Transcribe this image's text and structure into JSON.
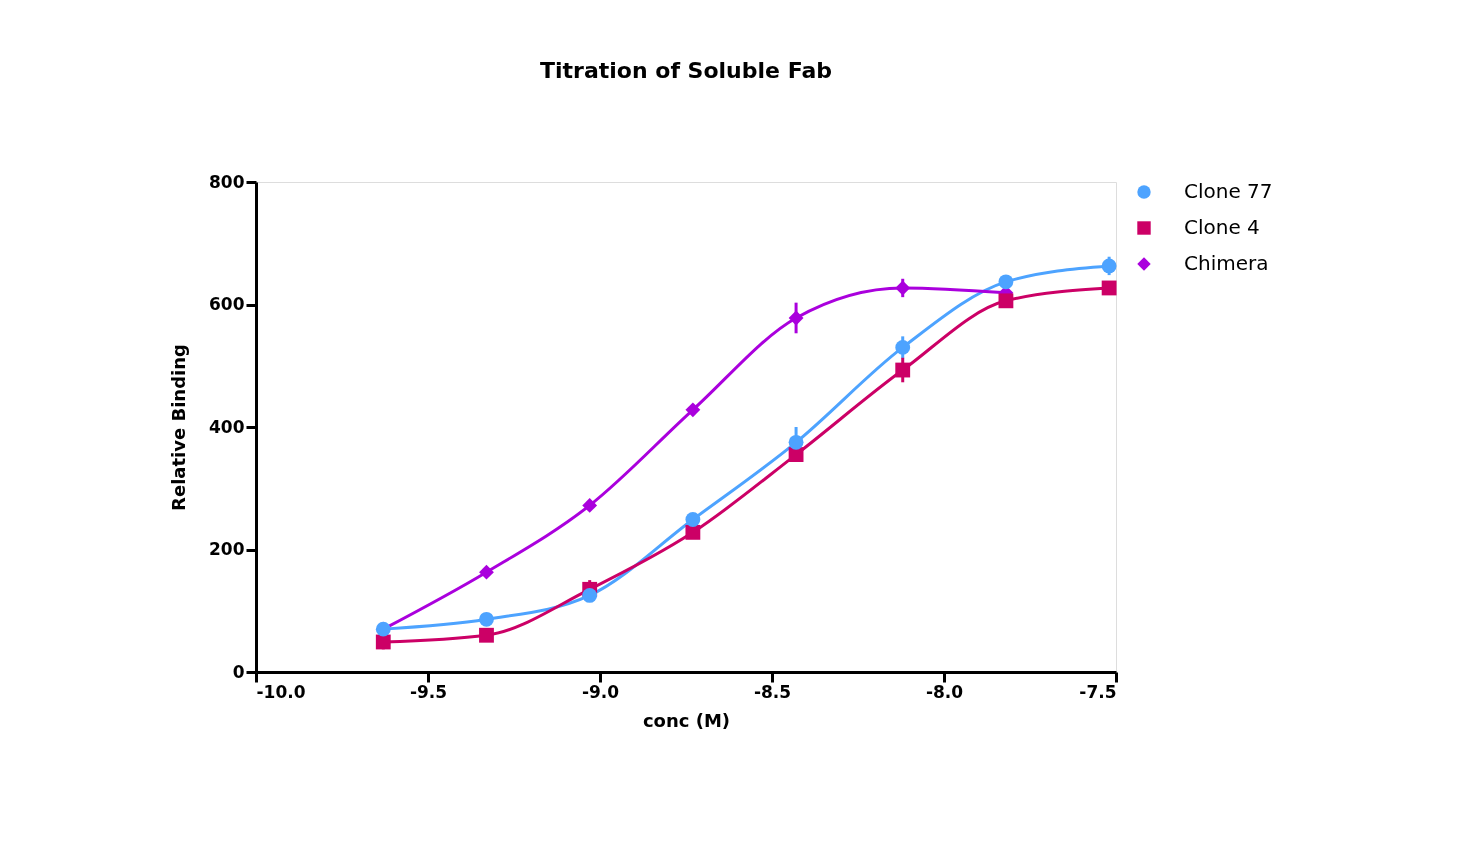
{
  "chart_data": {
    "type": "line",
    "title": "Titration of Soluble Fab",
    "xlabel": "conc (M)",
    "ylabel": "Relative Binding",
    "x": [
      -9.63,
      -9.33,
      -9.03,
      -8.73,
      -8.43,
      -8.12,
      -7.82,
      -7.52
    ],
    "series": [
      {
        "name": "Clone 77",
        "color": "#4da3ff",
        "marker": "circle",
        "values": [
          70,
          86,
          125,
          249,
          375,
          530,
          637,
          663
        ],
        "errors": [
          null,
          null,
          null,
          10,
          25,
          18,
          null,
          15
        ]
      },
      {
        "name": "Clone 4",
        "color": "#cc0066",
        "marker": "square",
        "values": [
          49,
          60,
          135,
          228,
          355,
          493,
          606,
          627
        ],
        "errors": [
          12,
          null,
          15,
          null,
          10,
          20,
          null,
          null
        ]
      },
      {
        "name": "Chimera",
        "color": "#aa00dd",
        "marker": "diamond",
        "values": [
          70,
          163,
          272,
          428,
          578,
          627,
          619,
          null
        ],
        "errors": [
          null,
          null,
          null,
          null,
          25,
          15,
          null,
          null
        ]
      }
    ],
    "xlim": [
      -10.0,
      -7.5
    ],
    "xticks": [
      {
        "value": -10,
        "label": "-10.0"
      },
      -9.5,
      {
        "value": -9,
        "label": "-9.0"
      },
      -8.5,
      {
        "value": -8,
        "label": "-8.0"
      },
      -7.5
    ],
    "ylim": [
      0,
      800
    ],
    "yticks": [
      0,
      200,
      400,
      600,
      800
    ],
    "grid": false,
    "legend": "top right",
    "line_style": "solid"
  }
}
